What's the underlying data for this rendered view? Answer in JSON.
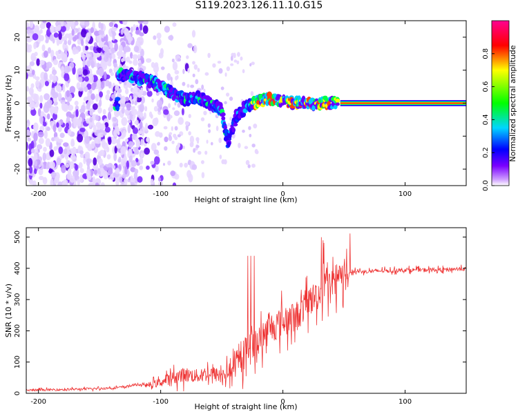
{
  "title": "S119.2023.126.11.10.G15",
  "chart_data": [
    {
      "type": "heatmap",
      "xlabel": "Height of straight line (km)",
      "ylabel": "Frequency (Hz)",
      "xlim": [
        -210,
        150
      ],
      "ylim": [
        -25,
        25
      ],
      "xticks": [
        -200,
        -100,
        0,
        100
      ],
      "yticks": [
        -20,
        -10,
        0,
        10,
        20
      ],
      "colorbar": {
        "label": "Normalized spectral amplitude",
        "range": [
          0.0,
          1.0
        ],
        "ticks": [
          0.0,
          0.2,
          0.4,
          0.6,
          0.8
        ],
        "colors": [
          "#ffffff",
          "#7a00ff",
          "#0000ff",
          "#00d6ff",
          "#00ff00",
          "#ffff00",
          "#ff0000",
          "#ff0090"
        ]
      },
      "ridge": [
        {
          "x": -135,
          "y": 9
        },
        {
          "x": -125,
          "y": 8
        },
        {
          "x": -110,
          "y": 7
        },
        {
          "x": -100,
          "y": 5
        },
        {
          "x": -90,
          "y": 3
        },
        {
          "x": -80,
          "y": 1
        },
        {
          "x": -70,
          "y": 2
        },
        {
          "x": -60,
          "y": 0
        },
        {
          "x": -50,
          "y": -2
        },
        {
          "x": -45,
          "y": -12
        },
        {
          "x": -38,
          "y": -4
        },
        {
          "x": -30,
          "y": -1
        },
        {
          "x": -20,
          "y": 0.5
        },
        {
          "x": -10,
          "y": 1.5
        },
        {
          "x": 0,
          "y": 0.5
        },
        {
          "x": 10,
          "y": 0
        },
        {
          "x": 45,
          "y": 0
        },
        {
          "x": 150,
          "y": 0
        }
      ],
      "grid": false
    },
    {
      "type": "line",
      "xlabel": "Height of straight line (km)",
      "ylabel": "SNR (10 * v/v)",
      "xlim": [
        -210,
        150
      ],
      "ylim": [
        0,
        530
      ],
      "xticks": [
        -200,
        -100,
        0,
        100
      ],
      "yticks": [
        0,
        100,
        200,
        300,
        400,
        500
      ],
      "color": "#ee3333",
      "series": [
        {
          "x": [
            -210,
            -180,
            -150,
            -130,
            -120,
            -110,
            -100,
            -90,
            -80,
            -70,
            -60,
            -50,
            -40,
            -30,
            -25,
            -20,
            -10,
            0,
            10,
            20,
            30,
            40,
            50,
            55,
            60,
            70,
            80,
            90,
            100,
            110,
            120,
            130,
            140,
            150
          ],
          "values": [
            10,
            12,
            15,
            20,
            28,
            25,
            35,
            50,
            60,
            55,
            65,
            55,
            80,
            130,
            140,
            170,
            210,
            230,
            240,
            290,
            320,
            360,
            370,
            390,
            390,
            390,
            392,
            392,
            395,
            395,
            395,
            395,
            398,
            398
          ]
        }
      ],
      "grid": false
    }
  ]
}
